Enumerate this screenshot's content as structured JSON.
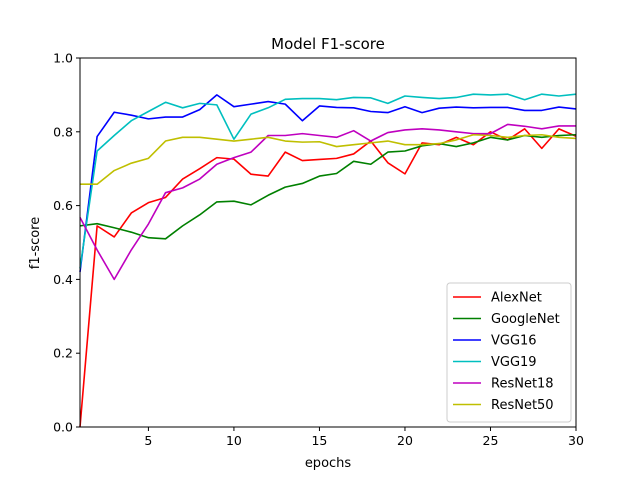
{
  "chart_data": {
    "type": "line",
    "title": "Model F1-score",
    "xlabel": "epochs",
    "ylabel": "f1-score",
    "xlim": [
      1,
      30
    ],
    "ylim": [
      0,
      1.0
    ],
    "xticks": [
      5,
      10,
      15,
      20,
      25,
      30
    ],
    "xtick_labels": [
      "5",
      "10",
      "15",
      "20",
      "25",
      "30"
    ],
    "yticks": [
      0.0,
      0.2,
      0.4,
      0.6,
      0.8,
      1.0
    ],
    "ytick_labels": [
      "0.0",
      "0.2",
      "0.4",
      "0.6",
      "0.8",
      "1.0"
    ],
    "grid": false,
    "legend_position": "lower-right",
    "x": [
      1,
      2,
      3,
      4,
      5,
      6,
      7,
      8,
      9,
      10,
      11,
      12,
      13,
      14,
      15,
      16,
      17,
      18,
      19,
      20,
      21,
      22,
      23,
      24,
      25,
      26,
      27,
      28,
      29,
      30
    ],
    "series": [
      {
        "name": "AlexNet",
        "color": "#ff0000",
        "values": [
          0.0,
          0.545,
          0.515,
          0.58,
          0.608,
          0.622,
          0.672,
          0.7,
          0.73,
          0.726,
          0.685,
          0.68,
          0.745,
          0.722,
          0.725,
          0.728,
          0.74,
          0.775,
          0.716,
          0.686,
          0.77,
          0.765,
          0.785,
          0.765,
          0.8,
          0.778,
          0.808,
          0.755,
          0.808,
          0.788
        ]
      },
      {
        "name": "GoogleNet",
        "color": "#008000",
        "values": [
          0.545,
          0.551,
          0.54,
          0.528,
          0.513,
          0.51,
          0.545,
          0.575,
          0.61,
          0.612,
          0.602,
          0.628,
          0.65,
          0.66,
          0.68,
          0.687,
          0.72,
          0.712,
          0.745,
          0.748,
          0.762,
          0.768,
          0.76,
          0.77,
          0.785,
          0.778,
          0.79,
          0.785,
          0.79,
          0.792
        ]
      },
      {
        "name": "VGG16",
        "color": "#0000ff",
        "values": [
          0.42,
          0.787,
          0.853,
          0.845,
          0.835,
          0.84,
          0.84,
          0.86,
          0.9,
          0.868,
          0.875,
          0.882,
          0.875,
          0.83,
          0.87,
          0.866,
          0.865,
          0.855,
          0.852,
          0.868,
          0.852,
          0.864,
          0.867,
          0.865,
          0.866,
          0.866,
          0.858,
          0.858,
          0.867,
          0.862
        ]
      },
      {
        "name": "VGG19",
        "color": "#00bfbf",
        "values": [
          0.43,
          0.748,
          0.79,
          0.83,
          0.855,
          0.88,
          0.865,
          0.877,
          0.873,
          0.78,
          0.848,
          0.865,
          0.888,
          0.89,
          0.89,
          0.887,
          0.893,
          0.892,
          0.877,
          0.897,
          0.893,
          0.89,
          0.893,
          0.902,
          0.9,
          0.902,
          0.887,
          0.902,
          0.897,
          0.902
        ]
      },
      {
        "name": "ResNet18",
        "color": "#bf00bf",
        "values": [
          0.568,
          0.48,
          0.4,
          0.48,
          0.55,
          0.635,
          0.648,
          0.672,
          0.712,
          0.73,
          0.745,
          0.79,
          0.79,
          0.795,
          0.79,
          0.785,
          0.803,
          0.775,
          0.798,
          0.805,
          0.808,
          0.805,
          0.8,
          0.795,
          0.795,
          0.82,
          0.815,
          0.808,
          0.816,
          0.816
        ]
      },
      {
        "name": "ResNet50",
        "color": "#bfbf00",
        "values": [
          0.658,
          0.658,
          0.695,
          0.715,
          0.728,
          0.775,
          0.785,
          0.785,
          0.78,
          0.775,
          0.78,
          0.785,
          0.775,
          0.772,
          0.773,
          0.76,
          0.765,
          0.77,
          0.775,
          0.765,
          0.765,
          0.768,
          0.778,
          0.792,
          0.79,
          0.785,
          0.79,
          0.792,
          0.785,
          0.782
        ]
      }
    ]
  }
}
